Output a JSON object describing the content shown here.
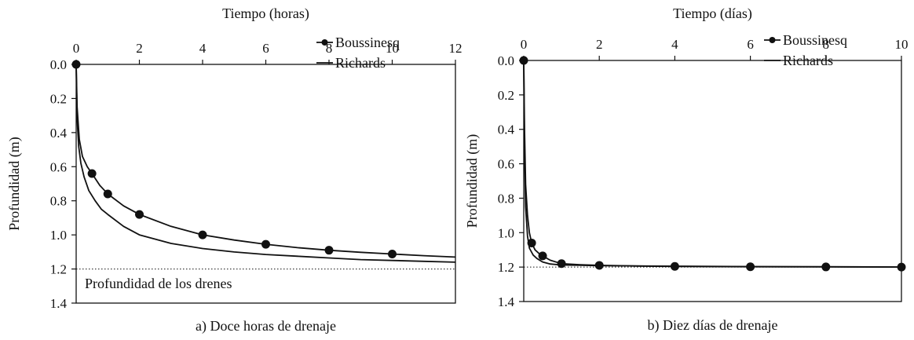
{
  "chart_data": [
    {
      "type": "line",
      "caption": "a) Doce horas de drenaje",
      "xlabel": "Tiempo (horas)",
      "ylabel": "Profundidad (m)",
      "xlim": [
        0,
        12
      ],
      "ylim": [
        0.0,
        1.4
      ],
      "y_inverted": true,
      "x_axis_position": "top",
      "xticks": [
        "0",
        "2",
        "4",
        "6",
        "8",
        "10",
        "12"
      ],
      "yticks": [
        "0.0",
        "0.2",
        "0.4",
        "0.6",
        "0.8",
        "1.0",
        "1.2",
        "1.4"
      ],
      "legend_position": "top-right",
      "series": [
        {
          "name": "Boussinesq",
          "style": "line-with-markers",
          "x": [
            0,
            0.03,
            0.1,
            0.2,
            0.35,
            0.5,
            0.75,
            1.0,
            1.5,
            2.0,
            3.0,
            4.0,
            5.0,
            6.0,
            7.0,
            8.0,
            9.0,
            10.0,
            11.0,
            12.0
          ],
          "y": [
            0.0,
            0.25,
            0.44,
            0.54,
            0.6,
            0.64,
            0.71,
            0.76,
            0.83,
            0.88,
            0.95,
            1.0,
            1.03,
            1.055,
            1.075,
            1.09,
            1.102,
            1.112,
            1.122,
            1.13
          ],
          "markers_x": [
            0,
            0.5,
            1,
            2,
            4,
            6,
            8,
            10
          ],
          "markers_y": [
            0.0,
            0.64,
            0.76,
            0.88,
            1.0,
            1.055,
            1.09,
            1.112
          ]
        },
        {
          "name": "Richards",
          "style": "line",
          "x": [
            0,
            0.03,
            0.08,
            0.15,
            0.25,
            0.4,
            0.6,
            0.8,
            1.0,
            1.5,
            2.0,
            3.0,
            4.0,
            5.0,
            6.0,
            7.0,
            8.0,
            9.0,
            10.0,
            11.0,
            12.0
          ],
          "y": [
            0.0,
            0.32,
            0.48,
            0.58,
            0.66,
            0.74,
            0.8,
            0.85,
            0.88,
            0.95,
            1.0,
            1.05,
            1.08,
            1.1,
            1.115,
            1.125,
            1.135,
            1.145,
            1.15,
            1.155,
            1.16
          ]
        }
      ],
      "reference_line": {
        "y": 1.2,
        "style": "dotted",
        "label": "Profundidad de los drenes"
      }
    },
    {
      "type": "line",
      "caption": "b) Diez días de drenaje",
      "xlabel": "Tiempo (días)",
      "ylabel": "Profundidad (m)",
      "xlim": [
        0,
        10
      ],
      "ylim": [
        0.0,
        1.4
      ],
      "y_inverted": true,
      "x_axis_position": "top",
      "xticks": [
        "0",
        "2",
        "4",
        "6",
        "8",
        "10"
      ],
      "yticks": [
        "0.0",
        "0.2",
        "0.4",
        "0.6",
        "0.8",
        "1.0",
        "1.2",
        "1.4"
      ],
      "legend_position": "top-right",
      "series": [
        {
          "name": "Boussinesq",
          "style": "line-with-markers",
          "x": [
            0,
            0.02,
            0.05,
            0.1,
            0.15,
            0.21,
            0.3,
            0.4,
            0.5,
            0.7,
            1.0,
            1.5,
            2.0,
            3.0,
            4.0,
            6.0,
            8.0,
            10.0
          ],
          "y": [
            0.0,
            0.4,
            0.72,
            0.9,
            1.0,
            1.06,
            1.1,
            1.12,
            1.135,
            1.16,
            1.18,
            1.186,
            1.19,
            1.194,
            1.196,
            1.198,
            1.199,
            1.2
          ],
          "markers_x": [
            0,
            0.21,
            0.5,
            1,
            2,
            4,
            6,
            8,
            10
          ],
          "markers_y": [
            0.0,
            1.06,
            1.135,
            1.18,
            1.19,
            1.196,
            1.198,
            1.199,
            1.2
          ]
        },
        {
          "name": "Richards",
          "style": "line",
          "x": [
            0,
            0.02,
            0.05,
            0.1,
            0.15,
            0.25,
            0.35,
            0.5,
            0.7,
            1.0,
            1.5,
            2.0,
            4.0,
            6.0,
            8.0,
            10.0
          ],
          "y": [
            0.0,
            0.55,
            0.85,
            1.02,
            1.09,
            1.13,
            1.15,
            1.17,
            1.182,
            1.188,
            1.19,
            1.192,
            1.195,
            1.197,
            1.198,
            1.2
          ]
        }
      ],
      "reference_line": {
        "y": 1.2,
        "style": "dotted"
      }
    }
  ]
}
